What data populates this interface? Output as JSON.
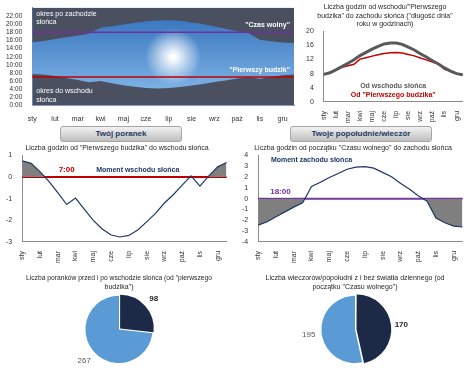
{
  "chart_data": [
    {
      "type": "area",
      "categories": [
        "sty",
        null,
        "lut",
        null,
        "mar",
        null,
        "kwi",
        null,
        "maj",
        null,
        "cze",
        null,
        "lip",
        null,
        "sie",
        null,
        "wrz",
        null,
        "paź",
        null,
        "lis",
        null,
        "gru",
        null
      ],
      "series": [
        {
          "name": "okres do wschodu słońca",
          "color": "#4a5060",
          "values": [
            7.75,
            7.63,
            7.25,
            6.8,
            6.28,
            5.73,
            6.03,
            5.5,
            5.0,
            4.6,
            4.32,
            4.23,
            4.3,
            4.55,
            4.93,
            5.32,
            5.8,
            6.18,
            6.63,
            7.05,
            6.58,
            7.05,
            7.47,
            7.67
          ]
        },
        {
          "name": "okres po zachodzie słońca",
          "color": "#4a5060",
          "values": [
            15.55,
            15.87,
            16.33,
            16.78,
            17.22,
            17.63,
            19.12,
            19.52,
            19.95,
            20.33,
            20.72,
            20.92,
            20.97,
            20.82,
            20.43,
            20.02,
            19.42,
            18.9,
            18.28,
            17.77,
            16.2,
            15.78,
            15.47,
            15.38
          ]
        }
      ],
      "ylim": [
        0,
        24
      ],
      "yticks": [
        {
          "value": 0,
          "label": "0:00"
        },
        {
          "value": 2,
          "label": "2:00"
        },
        {
          "value": 4,
          "label": "4:00"
        },
        {
          "value": 6,
          "label": "6:00"
        },
        {
          "value": 8,
          "label": "8:00"
        },
        {
          "value": 10,
          "label": "10:00"
        },
        {
          "value": 12,
          "label": "12:00"
        },
        {
          "value": 14,
          "label": "14:00"
        },
        {
          "value": 16,
          "label": "16:00"
        },
        {
          "value": 18,
          "label": "18:00"
        },
        {
          "value": 20,
          "label": "20:00"
        },
        {
          "value": 22,
          "label": "22:00"
        }
      ],
      "reference_lines": [
        {
          "name": "\"Czas wolny\"",
          "value": 18,
          "color": "#7030a0"
        },
        {
          "name": "\"Pierwszy budzik\"",
          "value": 7,
          "color": "#c00000"
        }
      ]
    },
    {
      "type": "line",
      "title": "Liczba godzin od wschodu/\"Pierwszego budzika\" do zachodu słońca (\"długość dnia\" roku w godzinach)",
      "categories": [
        "sty",
        null,
        "lut",
        null,
        "mar",
        null,
        "kwi",
        null,
        "maj",
        null,
        "cze",
        null,
        "lip",
        null,
        "sie",
        null,
        "wrz",
        null,
        "paź",
        null,
        "lis",
        null,
        "gru",
        null
      ],
      "series": [
        {
          "name": "Od wschodu słońca",
          "color": "#595959",
          "values": [
            7.8,
            8.24,
            9.08,
            9.98,
            10.94,
            11.9,
            13.09,
            14.02,
            14.95,
            15.73,
            16.4,
            16.69,
            16.67,
            16.27,
            15.5,
            14.7,
            13.62,
            12.72,
            11.65,
            10.72,
            9.62,
            8.73,
            8.0,
            7.71
          ]
        },
        {
          "name": "Od \"Pierwszego budzika\"",
          "color": "#c00000",
          "values": [
            7.8,
            8.24,
            9.08,
            9.78,
            10.22,
            10.63,
            12.12,
            12.52,
            12.95,
            13.33,
            13.72,
            13.92,
            13.97,
            13.82,
            13.43,
            13.02,
            12.42,
            11.9,
            11.28,
            10.72,
            9.2,
            8.73,
            8.0,
            7.71
          ]
        }
      ],
      "ylim": [
        0,
        20
      ],
      "yticks": [
        0,
        4,
        8,
        12,
        16,
        20
      ]
    },
    {
      "type": "line",
      "title": "Liczba godzin od \"Pierwszego budzika\" do wschodu słońca",
      "categories": [
        "sty",
        null,
        "lut",
        null,
        "mar",
        null,
        "kwi",
        null,
        "maj",
        null,
        "cze",
        null,
        "lip",
        null,
        "sie",
        null,
        "wrz",
        null,
        "paź",
        null,
        "lis",
        null,
        "gru",
        null
      ],
      "series": [
        {
          "name": "Moment wschodu słońca",
          "color": "#1f3864",
          "values": [
            0.75,
            0.63,
            0.25,
            -0.2,
            -0.72,
            -1.27,
            -0.97,
            -1.5,
            -2.0,
            -2.4,
            -2.68,
            -2.77,
            -2.7,
            -2.45,
            -2.07,
            -1.68,
            -1.2,
            -0.82,
            -0.37,
            0.05,
            -0.42,
            0.05,
            0.47,
            0.67
          ]
        }
      ],
      "ylim": [
        -3,
        1
      ],
      "yticks": [
        -3,
        -2,
        -1,
        0,
        1
      ],
      "reference_lines": [
        {
          "name": "7:00",
          "value": 0,
          "color": "#c00000"
        }
      ]
    },
    {
      "type": "line",
      "title": "Liczba godzin od początku \"Czasu wolnego\" do zachodu słońca",
      "categories": [
        "sty",
        null,
        "lut",
        null,
        "mar",
        null,
        "kwi",
        null,
        "maj",
        null,
        "cze",
        null,
        "lip",
        null,
        "sie",
        null,
        "wrz",
        null,
        "paź",
        null,
        "lis",
        null,
        "gru",
        null
      ],
      "series": [
        {
          "name": "Moment zachodu słońca",
          "color": "#1f3864",
          "values": [
            -2.45,
            -2.13,
            -1.67,
            -1.22,
            -0.78,
            -0.37,
            1.12,
            1.52,
            1.95,
            2.33,
            2.72,
            2.92,
            2.97,
            2.82,
            2.43,
            2.02,
            1.42,
            0.9,
            0.28,
            -0.23,
            -1.8,
            -2.22,
            -2.53,
            -2.62
          ]
        }
      ],
      "ylim": [
        -4,
        4
      ],
      "yticks": [
        -4,
        -3,
        -2,
        -1,
        0,
        1,
        2,
        3,
        4
      ],
      "reference_lines": [
        {
          "name": "18:00",
          "value": 0,
          "color": "#7030a0"
        }
      ]
    },
    {
      "type": "pie",
      "title": "Liczba poranków przed i po wschodzie słońca (od \"pierwszego budzika\")",
      "values": [
        98,
        267
      ],
      "colors": [
        "#1c2a48",
        "#5b9bd5"
      ],
      "data_labels": true
    },
    {
      "type": "pie",
      "title": "Liczba wieczorów/popołudni z i bez światła dziennego (od początku \"Czasu wolnego\")",
      "values": [
        170,
        195
      ],
      "colors": [
        "#1c2a48",
        "#5b9bd5"
      ],
      "data_labels": true
    }
  ],
  "section_heads": [
    "Twój poranek",
    "Twoje popołudnie/wieczór"
  ]
}
